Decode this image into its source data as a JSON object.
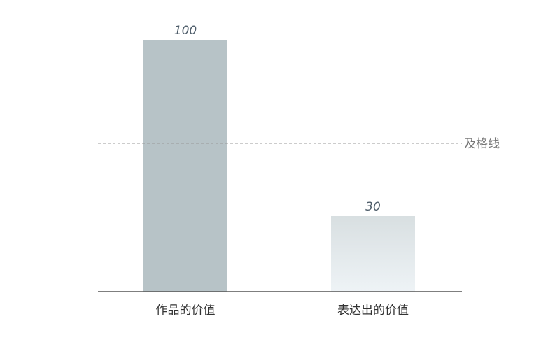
{
  "chart_data": {
    "type": "bar",
    "categories": [
      "作品的价值",
      "表达出的价值"
    ],
    "values": [
      100,
      30
    ],
    "data_labels": [
      "100",
      "30"
    ],
    "ylim": [
      0,
      100
    ],
    "grid": false,
    "reference_line": {
      "value": 60,
      "label": "及格线",
      "style": "dashed"
    },
    "colors": {
      "bar1": "#b7c3c7",
      "bar2_top": "#d8dfe1",
      "bar2_bottom": "#eef3f6",
      "axis": "#555555",
      "reference": "#999999",
      "value_label": "#4e5d6a"
    }
  }
}
